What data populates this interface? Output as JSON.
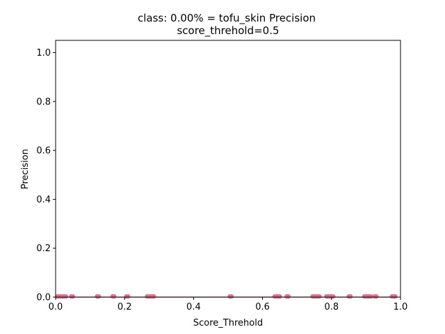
{
  "chart_data": {
    "type": "scatter",
    "title_line1": "class: 0.00% = tofu_skin Precision",
    "title_line2": "score_threhold=0.5",
    "xlabel": "Score_Threhold",
    "ylabel": "Precision",
    "xlim": [
      0.0,
      1.0
    ],
    "ylim": [
      0.0,
      1.05
    ],
    "x_ticks": [
      "0.0",
      "0.2",
      "0.4",
      "0.6",
      "0.8",
      "1.0"
    ],
    "y_ticks": [
      "0.0",
      "0.2",
      "0.4",
      "0.6",
      "0.8",
      "1.0"
    ],
    "grid": false,
    "marker_color": "#d9728f",
    "line_color": "#8b0a2a",
    "series": [
      {
        "x": [
          0.005,
          0.01,
          0.015,
          0.02,
          0.025,
          0.03,
          0.045,
          0.05,
          0.12,
          0.125,
          0.165,
          0.17,
          0.205,
          0.21,
          0.265,
          0.27,
          0.275,
          0.28,
          0.285,
          0.505,
          0.51,
          0.635,
          0.64,
          0.645,
          0.65,
          0.67,
          0.675,
          0.745,
          0.75,
          0.755,
          0.76,
          0.765,
          0.785,
          0.79,
          0.795,
          0.8,
          0.805,
          0.85,
          0.855,
          0.895,
          0.9,
          0.905,
          0.91,
          0.915,
          0.925,
          0.93,
          0.975,
          0.98,
          0.985
        ],
        "y": [
          0,
          0,
          0,
          0,
          0,
          0,
          0,
          0,
          0,
          0,
          0,
          0,
          0,
          0,
          0,
          0,
          0,
          0,
          0,
          0,
          0,
          0,
          0,
          0,
          0,
          0,
          0,
          0,
          0,
          0,
          0,
          0,
          0,
          0,
          0,
          0,
          0,
          0,
          0,
          0,
          0,
          0,
          0,
          0,
          0,
          0,
          0,
          0,
          0
        ]
      }
    ]
  }
}
